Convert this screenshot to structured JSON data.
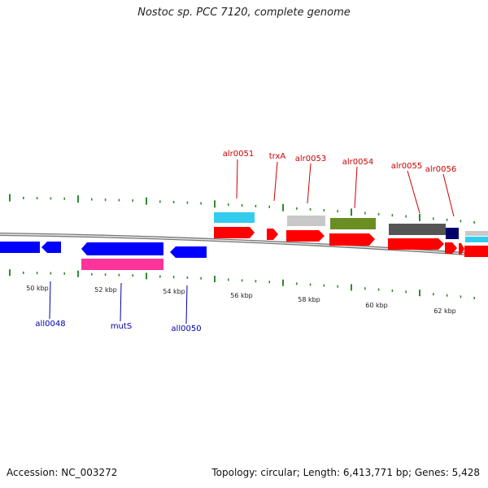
{
  "title": "Nostoc sp. PCC 7120, complete genome",
  "accession_label": "Accession: NC_003272",
  "summary_label": "Topology: circular; Length: 6,413,771 bp; Genes: 5,428",
  "colors": {
    "backbone": "#8a8a8a",
    "tick": "#2e8b2e",
    "forward_label": "#cc0000",
    "reverse_label": "#0000aa"
  },
  "scale_labels": [
    "50 kbp",
    "52 kbp",
    "54 kbp",
    "56 kbp",
    "58 kbp",
    "60 kbp",
    "62 kbp"
  ],
  "gene_labels": {
    "forward": [
      "alr0051",
      "trxA",
      "alr0053",
      "alr0054",
      "alr0055",
      "alr0056"
    ],
    "reverse": [
      "all0048",
      "mutS",
      "all0050"
    ]
  },
  "feature_colors": {
    "cds": "#ff0000",
    "reverse_cds": "#0000ff",
    "cyan": "#33ccee",
    "light_gray": "#c8c8c8",
    "olive": "#6b8e23",
    "dark_gray": "#555555",
    "navy": "#000066",
    "magenta": "#ff3399"
  }
}
